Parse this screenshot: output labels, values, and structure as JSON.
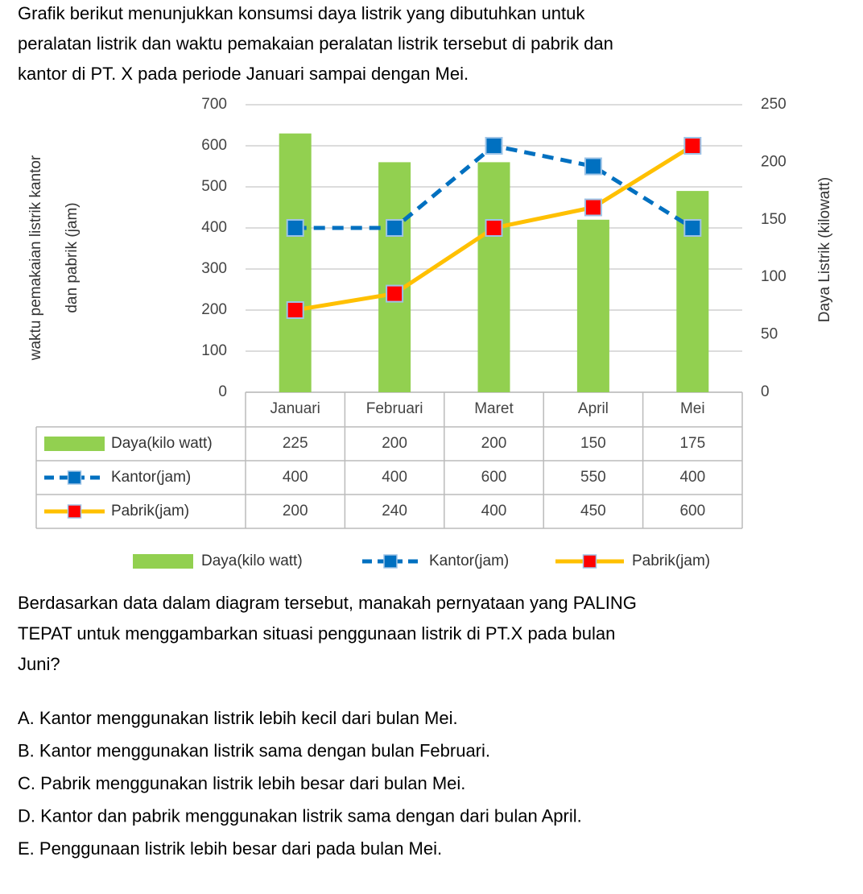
{
  "intro": [
    "Grafik berikut menunjukkan konsumsi daya listrik yang dibutuhkan untuk",
    "peralatan listrik dan waktu pemakaian peralatan listrik tersebut di pabrik dan",
    "kantor di PT. X pada periode Januari sampai dengan Mei."
  ],
  "chart_data": {
    "type": "bar-line",
    "categories": [
      "Januari",
      "Februari",
      "Maret",
      "April",
      "Mei"
    ],
    "ylabel": [
      "waktu pemakaian listrik kantor",
      "dan pabrik (jam)"
    ],
    "y2label": "Daya Listrik (kilowatt)",
    "ylim": [
      0,
      700
    ],
    "yticks": [
      0,
      100,
      200,
      300,
      400,
      500,
      600,
      700
    ],
    "y2lim": [
      0,
      250
    ],
    "y2ticks": [
      0,
      50,
      100,
      150,
      200,
      250
    ],
    "grid": true,
    "series": [
      {
        "name": "Daya(kilo watt)",
        "type": "bar",
        "axis": "y2",
        "color": "#92d050",
        "values": [
          225,
          200,
          200,
          150,
          175
        ]
      },
      {
        "name": "Kantor(jam)",
        "type": "line",
        "dashed": true,
        "color": "#0070c0",
        "marker_color": "#0070c0",
        "values": [
          400,
          400,
          600,
          550,
          400
        ]
      },
      {
        "name": "Pabrik(jam)",
        "type": "line",
        "dashed": false,
        "color": "#ffc000",
        "marker_color": "#ff0000",
        "values": [
          200,
          240,
          400,
          450,
          600
        ]
      }
    ]
  },
  "question": [
    "Berdasarkan data dalam diagram tersebut, manakah pernyataan yang PALING",
    "TEPAT untuk menggambarkan situasi penggunaan listrik di PT.X pada bulan",
    "Juni?"
  ],
  "options": [
    "A. Kantor menggunakan listrik lebih kecil dari bulan Mei.",
    "B. Kantor menggunakan listrik sama dengan bulan Februari.",
    "C. Pabrik menggunakan listrik lebih besar dari bulan Mei.",
    "D. Kantor dan pabrik menggunakan listrik sama dengan dari bulan April.",
    "E. Penggunaan listrik lebih besar dari pada bulan Mei."
  ]
}
